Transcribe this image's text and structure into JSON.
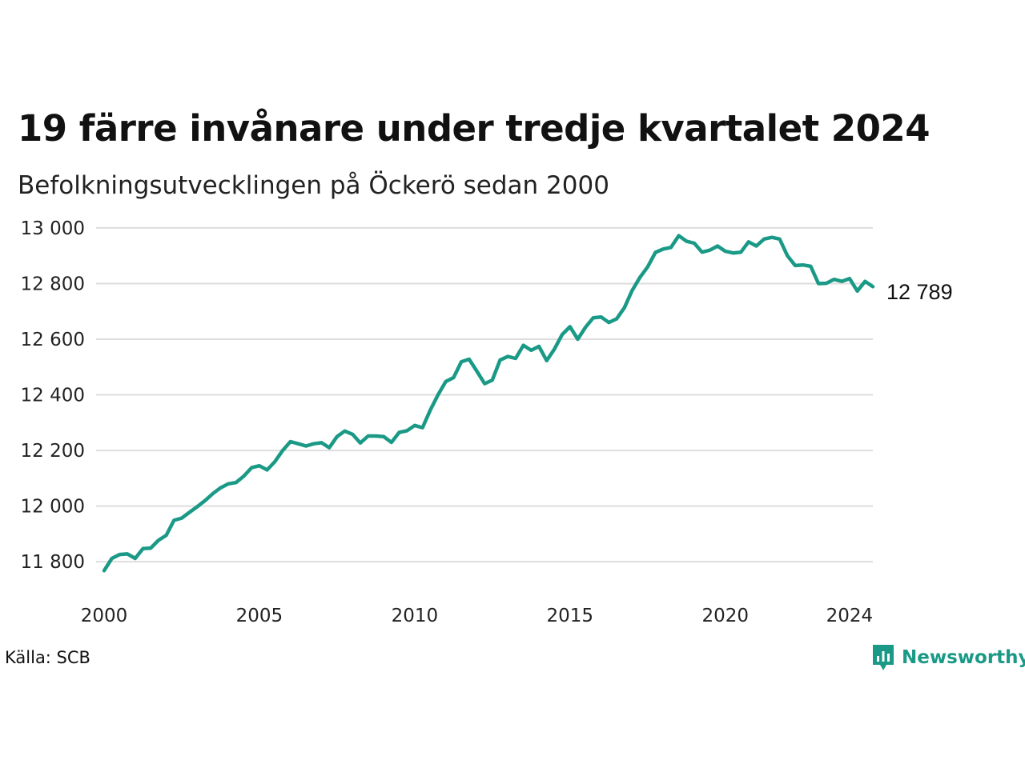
{
  "header": {
    "title": "19 färre invånare under tredje kvartalet 2024",
    "subtitle": "Befolkningsutvecklingen på Öckerö sedan 2000"
  },
  "footer": {
    "source": "Källa: SCB",
    "brand": "Newsworthy"
  },
  "colors": {
    "line": "#1a9a86",
    "grid": "#dddddd",
    "brand": "#1a9a86"
  },
  "chart_data": {
    "type": "line",
    "title": "19 färre invånare under tredje kvartalet 2024",
    "subtitle": "Befolkningsutvecklingen på Öckerö sedan 2000",
    "xlabel": "",
    "ylabel": "",
    "xlim": [
      2000,
      2024.75
    ],
    "ylim": [
      11720,
      13040
    ],
    "y_ticks": [
      11800,
      12000,
      12200,
      12400,
      12600,
      12800,
      13000
    ],
    "y_tick_labels": [
      "11 800",
      "12 000",
      "12 200",
      "12 400",
      "12 600",
      "12 800",
      "13 000"
    ],
    "x_ticks": [
      2000,
      2005,
      2010,
      2015,
      2020,
      2024
    ],
    "x_tick_labels": [
      "2000",
      "2005",
      "2010",
      "2015",
      "2020",
      "2024"
    ],
    "grid": true,
    "end_label": "12 789",
    "series": [
      {
        "x": [
          2000,
          2000.25,
          2000.5,
          2000.75,
          2001,
          2001.25,
          2001.5,
          2001.75,
          2002,
          2002.25,
          2002.5,
          2002.75,
          2003,
          2003.25,
          2003.5,
          2003.75,
          2004,
          2004.25,
          2004.5,
          2004.75,
          2005,
          2005.25,
          2005.5,
          2005.75,
          2006,
          2006.25,
          2006.5,
          2006.75,
          2007,
          2007.25,
          2007.5,
          2007.75,
          2008,
          2008.25,
          2008.5,
          2008.75,
          2009,
          2009.25,
          2009.5,
          2009.75,
          2010,
          2010.25,
          2010.5,
          2010.75,
          2011,
          2011.25,
          2011.5,
          2011.75,
          2012,
          2012.25,
          2012.5,
          2012.75,
          2013,
          2013.25,
          2013.5,
          2013.75,
          2014,
          2014.25,
          2014.5,
          2014.75,
          2015,
          2015.25,
          2015.5,
          2015.75,
          2016,
          2016.25,
          2016.5,
          2016.75,
          2017,
          2017.25,
          2017.5,
          2017.75,
          2018,
          2018.25,
          2018.5,
          2018.75,
          2019,
          2019.25,
          2019.5,
          2019.75,
          2020,
          2020.25,
          2020.5,
          2020.75,
          2021,
          2021.25,
          2021.5,
          2021.75,
          2022,
          2022.25,
          2022.5,
          2022.75,
          2023,
          2023.25,
          2023.5,
          2023.75,
          2024,
          2024.25,
          2024.5,
          2024.75
        ],
        "values": [
          11768,
          11812,
          11826,
          11828,
          11812,
          11847,
          11849,
          11877,
          11895,
          11949,
          11957,
          11978,
          11998,
          12020,
          12045,
          12066,
          12080,
          12085,
          12108,
          12138,
          12145,
          12130,
          12160,
          12200,
          12232,
          12224,
          12216,
          12224,
          12228,
          12210,
          12250,
          12270,
          12258,
          12227,
          12252,
          12252,
          12250,
          12229,
          12265,
          12271,
          12290,
          12282,
          12345,
          12400,
          12448,
          12462,
          12519,
          12528,
          12485,
          12440,
          12453,
          12525,
          12538,
          12531,
          12578,
          12560,
          12574,
          12523,
          12565,
          12617,
          12645,
          12600,
          12643,
          12677,
          12680,
          12660,
          12673,
          12713,
          12775,
          12822,
          12860,
          12912,
          12924,
          12930,
          12972,
          12952,
          12945,
          12913,
          12920,
          12935,
          12916,
          12910,
          12913,
          12950,
          12935,
          12960,
          12966,
          12960,
          12900,
          12865,
          12867,
          12862,
          12800,
          12801,
          12815,
          12808,
          12818,
          12773,
          12808,
          12789
        ]
      }
    ]
  }
}
